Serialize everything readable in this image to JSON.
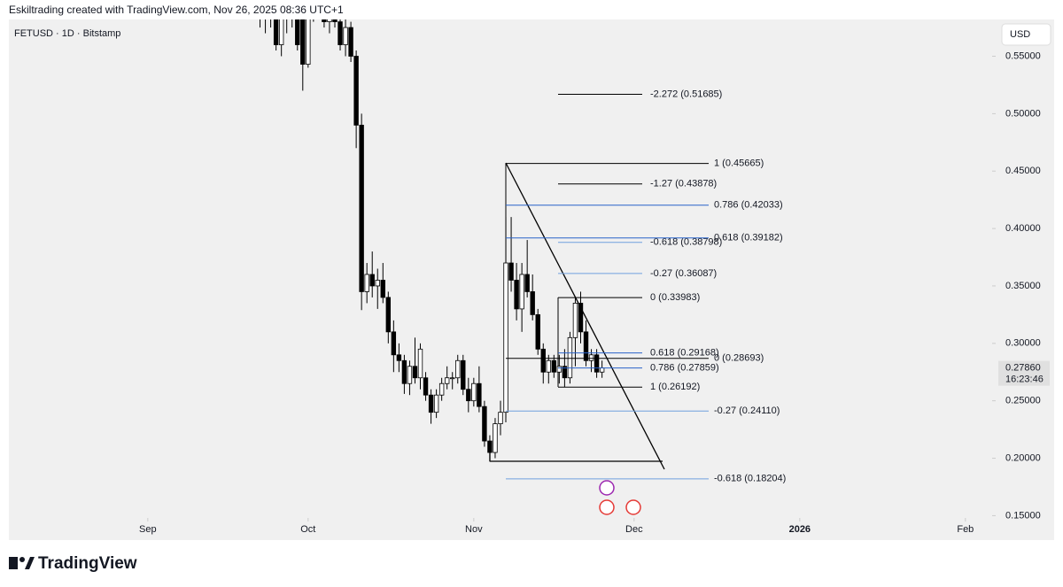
{
  "header": {
    "credit": "Eskiltrading created with TradingView.com, Nov 26, 2025 08:36 UTC+1",
    "symbol": "FETUSD · 1D · Bitstamp",
    "currency": "USD"
  },
  "footer": {
    "brand": "TradingView"
  },
  "chart_data": {
    "type": "candlestick",
    "up_color": "#ffffff",
    "down_color": "#000000",
    "outline_color": "#000000",
    "x": [
      "2025-09-22",
      "2025-09-23",
      "2025-09-24",
      "2025-09-25",
      "2025-09-26",
      "2025-09-27",
      "2025-09-28",
      "2025-09-29",
      "2025-09-30",
      "2025-10-01",
      "2025-10-02",
      "2025-10-03",
      "2025-10-04",
      "2025-10-05",
      "2025-10-06",
      "2025-10-07",
      "2025-10-08",
      "2025-10-09",
      "2025-10-10",
      "2025-10-11",
      "2025-10-12",
      "2025-10-13",
      "2025-10-14",
      "2025-10-15",
      "2025-10-16",
      "2025-10-17",
      "2025-10-18",
      "2025-10-19",
      "2025-10-20",
      "2025-10-21",
      "2025-10-22",
      "2025-10-23",
      "2025-10-24",
      "2025-10-25",
      "2025-10-26",
      "2025-10-27",
      "2025-10-28",
      "2025-10-29",
      "2025-10-30",
      "2025-10-31",
      "2025-11-01",
      "2025-11-02",
      "2025-11-03",
      "2025-11-04",
      "2025-11-05",
      "2025-11-06",
      "2025-11-07",
      "2025-11-08",
      "2025-11-09",
      "2025-11-10",
      "2025-11-11",
      "2025-11-12",
      "2025-11-13",
      "2025-11-14",
      "2025-11-15",
      "2025-11-16",
      "2025-11-17",
      "2025-11-18",
      "2025-11-19",
      "2025-11-20",
      "2025-11-21",
      "2025-11-22",
      "2025-11-23",
      "2025-11-24",
      "2025-11-25"
    ],
    "open": [
      0.6,
      0.585,
      0.59,
      0.6,
      0.56,
      0.585,
      0.59,
      0.6,
      0.59,
      0.543,
      0.59,
      0.61,
      0.6,
      0.58,
      0.59,
      0.58,
      0.56,
      0.575,
      0.55,
      0.49,
      0.345,
      0.36,
      0.35,
      0.355,
      0.34,
      0.31,
      0.29,
      0.285,
      0.265,
      0.28,
      0.27,
      0.27,
      0.255,
      0.24,
      0.255,
      0.265,
      0.27,
      0.27,
      0.285,
      0.26,
      0.25,
      0.265,
      0.245,
      0.215,
      0.205,
      0.23,
      0.24,
      0.37,
      0.355,
      0.33,
      0.36,
      0.345,
      0.325,
      0.295,
      0.275,
      0.285,
      0.275,
      0.28,
      0.27,
      0.305,
      0.335,
      0.31,
      0.285,
      0.29,
      0.275
    ],
    "high": [
      0.62,
      0.6,
      0.61,
      0.6,
      0.59,
      0.6,
      0.61,
      0.61,
      0.59,
      0.6,
      0.62,
      0.63,
      0.61,
      0.6,
      0.6,
      0.59,
      0.585,
      0.58,
      0.555,
      0.5,
      0.37,
      0.38,
      0.365,
      0.37,
      0.345,
      0.32,
      0.3,
      0.29,
      0.285,
      0.305,
      0.3,
      0.275,
      0.26,
      0.26,
      0.27,
      0.28,
      0.275,
      0.29,
      0.29,
      0.27,
      0.27,
      0.28,
      0.25,
      0.22,
      0.235,
      0.25,
      0.41,
      0.41,
      0.37,
      0.37,
      0.39,
      0.36,
      0.33,
      0.3,
      0.29,
      0.29,
      0.29,
      0.295,
      0.31,
      0.34,
      0.345,
      0.32,
      0.295,
      0.295,
      0.285
    ],
    "low": [
      0.575,
      0.57,
      0.575,
      0.555,
      0.55,
      0.57,
      0.575,
      0.555,
      0.52,
      0.54,
      0.58,
      0.59,
      0.575,
      0.57,
      0.575,
      0.555,
      0.55,
      0.545,
      0.47,
      0.329,
      0.335,
      0.34,
      0.33,
      0.335,
      0.3,
      0.275,
      0.275,
      0.256,
      0.255,
      0.265,
      0.26,
      0.25,
      0.23,
      0.235,
      0.25,
      0.26,
      0.26,
      0.265,
      0.255,
      0.24,
      0.245,
      0.24,
      0.21,
      0.197,
      0.2,
      0.22,
      0.235,
      0.345,
      0.32,
      0.31,
      0.34,
      0.32,
      0.29,
      0.265,
      0.265,
      0.27,
      0.265,
      0.262,
      0.265,
      0.28,
      0.3,
      0.28,
      0.275,
      0.27,
      0.27
    ],
    "close": [
      0.585,
      0.59,
      0.6,
      0.56,
      0.585,
      0.59,
      0.6,
      0.56,
      0.543,
      0.59,
      0.61,
      0.6,
      0.58,
      0.59,
      0.58,
      0.56,
      0.575,
      0.55,
      0.49,
      0.345,
      0.36,
      0.35,
      0.355,
      0.34,
      0.31,
      0.29,
      0.285,
      0.265,
      0.28,
      0.27,
      0.295,
      0.255,
      0.24,
      0.255,
      0.265,
      0.27,
      0.27,
      0.285,
      0.26,
      0.25,
      0.265,
      0.245,
      0.215,
      0.205,
      0.23,
      0.24,
      0.37,
      0.355,
      0.33,
      0.36,
      0.345,
      0.325,
      0.295,
      0.275,
      0.285,
      0.275,
      0.28,
      0.27,
      0.305,
      0.335,
      0.31,
      0.285,
      0.29,
      0.275,
      0.2786
    ],
    "xlim": [
      "2025-08-06",
      "2026-02-06"
    ],
    "xticks": [
      {
        "value": "2025-09-01",
        "label": "Sep"
      },
      {
        "value": "2025-10-01",
        "label": "Oct"
      },
      {
        "value": "2025-11-01",
        "label": "Nov"
      },
      {
        "value": "2025-12-01",
        "label": "Dec"
      },
      {
        "value": "2026-01-01",
        "label": "2026"
      },
      {
        "value": "2026-02-01",
        "label": "Feb"
      }
    ],
    "ylim": [
      0.148,
      0.582
    ],
    "yticks": [
      {
        "value": 0.15,
        "label": "0.15000"
      },
      {
        "value": 0.2,
        "label": "0.20000"
      },
      {
        "value": 0.25,
        "label": "0.25000"
      },
      {
        "value": 0.3,
        "label": "0.30000"
      },
      {
        "value": 0.35,
        "label": "0.35000"
      },
      {
        "value": 0.4,
        "label": "0.40000"
      },
      {
        "value": 0.45,
        "label": "0.45000"
      },
      {
        "value": 0.5,
        "label": "0.50000"
      },
      {
        "value": 0.55,
        "label": "0.55000"
      }
    ],
    "last_price": {
      "value": 0.2786,
      "label": "0.27860"
    },
    "countdown": "16:23:46",
    "fib_levels": [
      {
        "label": "-2.272 (0.51685)",
        "value": 0.51685,
        "color": "#000000"
      },
      {
        "label": "-1.27 (0.43878)",
        "value": 0.43878,
        "color": "#000000"
      },
      {
        "label": "-0.618 (0.38798)",
        "value": 0.38798,
        "color": "#6fa1de"
      },
      {
        "label": "-0.27 (0.36087)",
        "value": 0.36087,
        "color": "#6fa1de"
      },
      {
        "label": "0 (0.33983)",
        "value": 0.33983,
        "color": "#000000"
      },
      {
        "label": "0.618 (0.29168)",
        "value": 0.29168,
        "color": "#2962c9"
      },
      {
        "label": "0.786 (0.27859)",
        "value": 0.27859,
        "color": "#2962c9"
      },
      {
        "label": "1 (0.26192)",
        "value": 0.26192,
        "color": "#000000"
      },
      {
        "label": "1 (0.45665)",
        "value": 0.45665,
        "color": "#000000"
      },
      {
        "label": "0.786 (0.42033)",
        "value": 0.42033,
        "color": "#2962c9"
      },
      {
        "label": "0.618 (0.39182)",
        "value": 0.39182,
        "color": "#2962c9"
      },
      {
        "label": "0 (0.28693)",
        "value": 0.28693,
        "color": "#000000"
      },
      {
        "label": "-0.27 (0.24110)",
        "value": 0.2411,
        "color": "#6fa1de"
      },
      {
        "label": "-0.618 (0.18204)",
        "value": 0.18204,
        "color": "#6fa1de"
      }
    ]
  }
}
